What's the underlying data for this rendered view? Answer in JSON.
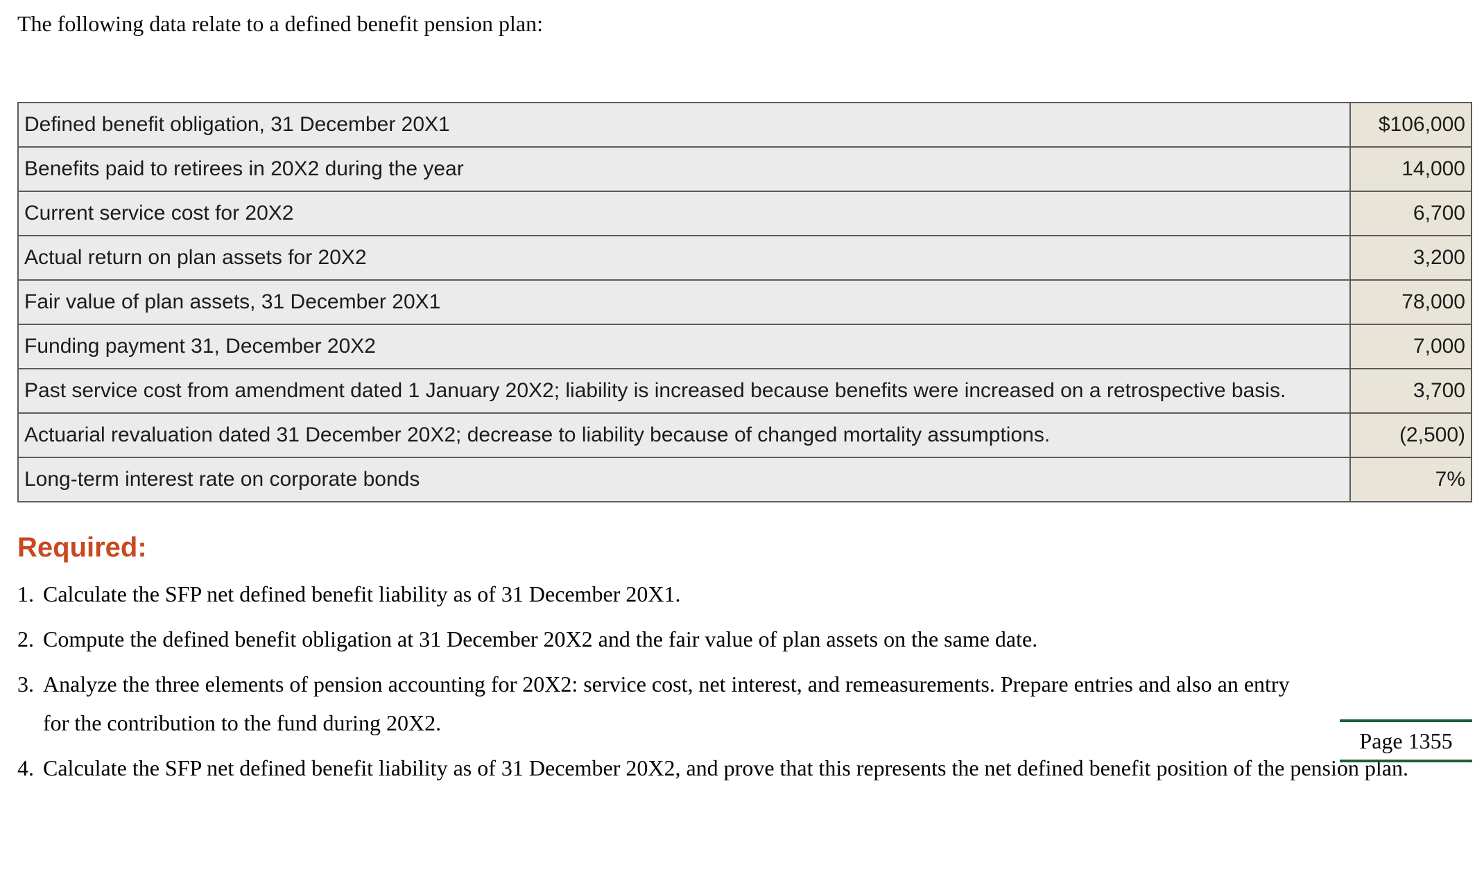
{
  "intro": "The following data relate to a defined benefit pension plan:",
  "table": {
    "rows": [
      {
        "label": "Defined benefit obligation, 31 December 20X1",
        "value": "$106,000"
      },
      {
        "label": "Benefits paid to retirees in 20X2 during the year",
        "value": "14,000"
      },
      {
        "label": "Current service cost for 20X2",
        "value": "6,700"
      },
      {
        "label": "Actual return on plan assets for 20X2",
        "value": "3,200"
      },
      {
        "label": "Fair value of plan assets, 31 December 20X1",
        "value": "78,000"
      },
      {
        "label": "Funding payment 31, December 20X2",
        "value": "7,000"
      },
      {
        "label": "Past service cost from amendment dated 1 January 20X2; liability is increased because benefits were increased on a retrospective basis.",
        "value": "3,700"
      },
      {
        "label": "Actuarial revaluation dated 31 December 20X2; decrease to liability because of changed mortality assumptions.",
        "value": "(2,500)"
      },
      {
        "label": "Long-term interest rate on corporate bonds",
        "value": "7%"
      }
    ]
  },
  "required": {
    "heading": "Required:",
    "items": [
      {
        "num": "1.",
        "text": "Calculate the SFP net defined benefit liability as of 31 December 20X1."
      },
      {
        "num": "2.",
        "text": "Compute the defined benefit obligation at 31 December 20X2 and the fair value of plan assets on the same date."
      },
      {
        "num": "3.",
        "text": "Analyze the three elements of pension accounting for 20X2: service cost, net interest, and remeasurements. Prepare entries and also an entry for the contribution to the fund during 20X2."
      },
      {
        "num": "4.",
        "text": "Calculate the SFP net defined benefit liability as of 31 December 20X2, and prove that this represents the net defined benefit position of the pension plan."
      }
    ]
  },
  "page_marker": {
    "label": "Page 1355"
  },
  "colors": {
    "accent_heading": "#c8481f",
    "page_marker_rule": "#1e5c3a",
    "table_label_bg": "#ebebeb",
    "table_value_bg": "#e9e4d8",
    "table_border": "#5c5c5e"
  }
}
